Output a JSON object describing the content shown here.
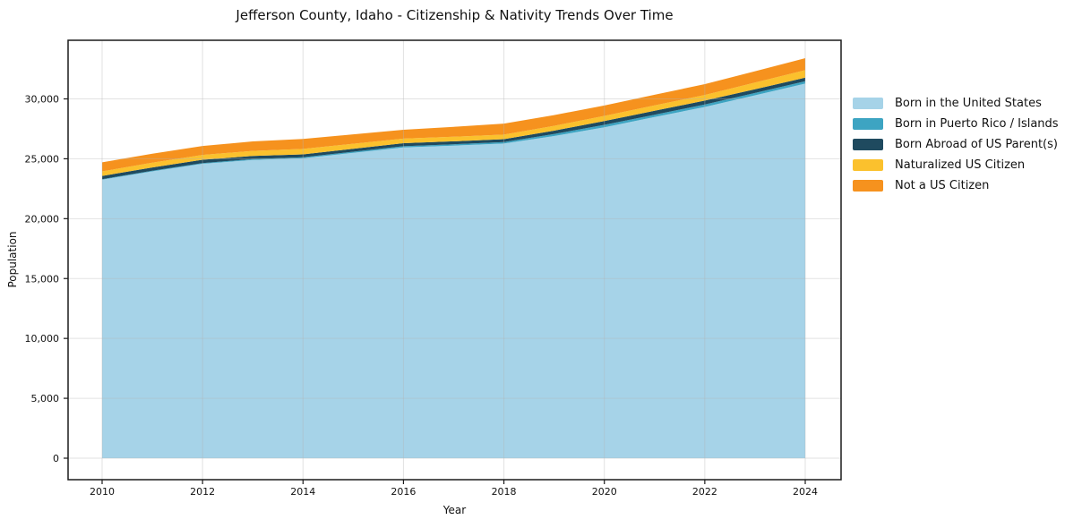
{
  "chart_data": {
    "type": "area",
    "stacked": true,
    "title": "Jefferson County, Idaho - Citizenship & Nativity Trends Over Time",
    "xlabel": "Year",
    "ylabel": "Population",
    "grid": true,
    "legend_position": "right-outside",
    "x": [
      2010,
      2011,
      2012,
      2013,
      2014,
      2015,
      2016,
      2017,
      2018,
      2019,
      2020,
      2021,
      2022,
      2023,
      2024
    ],
    "series": [
      {
        "name": "Born in the United States",
        "color": "#A6D3E8",
        "values": [
          23250,
          23950,
          24580,
          24900,
          25040,
          25500,
          25950,
          26100,
          26270,
          26900,
          27630,
          28480,
          29330,
          30300,
          31280
        ]
      },
      {
        "name": "Born in Puerto Rico / Islands",
        "color": "#3DA4C2",
        "values": [
          50,
          55,
          60,
          70,
          80,
          90,
          100,
          110,
          120,
          160,
          200,
          200,
          200,
          195,
          190
        ]
      },
      {
        "name": "Born Abroad of US Parent(s)",
        "color": "#1F4A5F",
        "values": [
          270,
          275,
          280,
          265,
          250,
          250,
          250,
          250,
          250,
          285,
          320,
          325,
          330,
          315,
          300
        ]
      },
      {
        "name": "Naturalized US Citizen",
        "color": "#FBC12D",
        "values": [
          380,
          390,
          400,
          425,
          450,
          415,
          380,
          380,
          380,
          405,
          430,
          450,
          470,
          550,
          630
        ]
      },
      {
        "name": "Not a US Citizen",
        "color": "#F6921E",
        "values": [
          750,
          750,
          750,
          790,
          830,
          785,
          740,
          830,
          920,
          895,
          870,
          885,
          900,
          950,
          1000
        ]
      }
    ],
    "xticks": {
      "values": [
        2010,
        2012,
        2014,
        2016,
        2018,
        2020,
        2022,
        2024
      ],
      "labels": [
        "2010",
        "2012",
        "2014",
        "2016",
        "2018",
        "2020",
        "2022",
        "2024"
      ]
    },
    "yticks": {
      "values": [
        0,
        5000,
        10000,
        15000,
        20000,
        25000,
        30000
      ],
      "labels": [
        "0",
        "5,000",
        "10,000",
        "15,000",
        "20,000",
        "25,000",
        "30,000"
      ]
    },
    "xlim": [
      2009.32,
      2024.68
    ],
    "ylim": [
      -1790,
      34920
    ],
    "axis_color": "#1b1b1b",
    "grid_color": "#b4b4b4"
  }
}
